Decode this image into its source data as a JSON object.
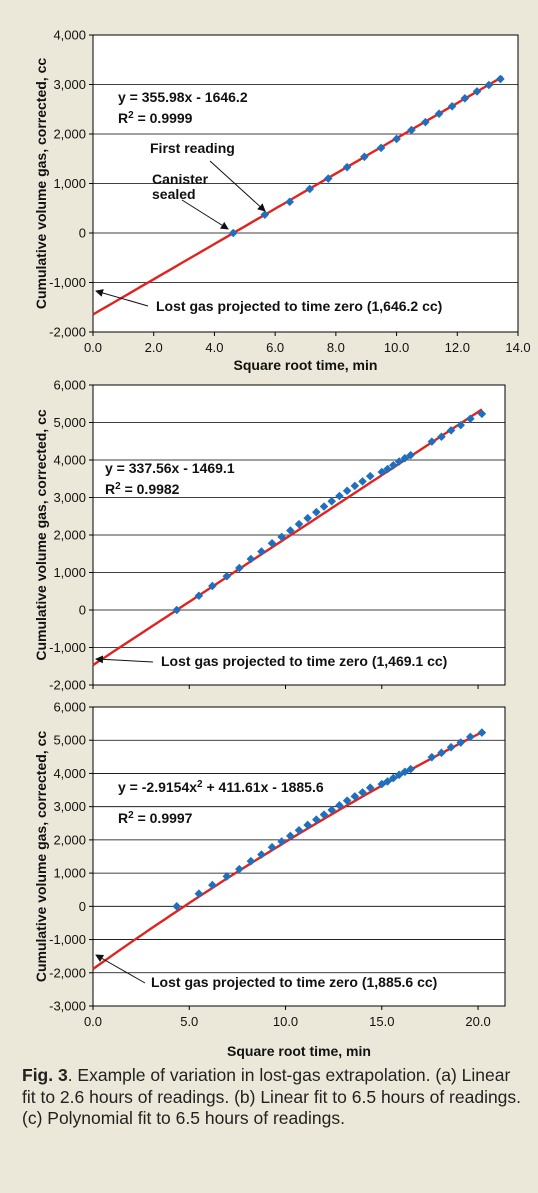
{
  "chart_data": [
    {
      "type": "scatter",
      "xlabel": "Square root time, min",
      "ylabel": "Cumulative volume gas, corrected, cc",
      "xlim": [
        0,
        14
      ],
      "ylim": [
        -2000,
        4000
      ],
      "xticks": [
        "0.0",
        "2.0",
        "4.0",
        "6.0",
        "8.0",
        "10.0",
        "12.0",
        "14.0"
      ],
      "yticks": [
        "-2,000",
        "-1,000",
        "0",
        "1,000",
        "2,000",
        "3,000",
        "4,000"
      ],
      "grid": "horizontal",
      "series": [
        {
          "x": [
            4.62,
            5.66,
            6.48,
            7.14,
            7.75,
            8.37,
            8.94,
            9.49,
            10.0,
            10.49,
            10.95,
            11.4,
            11.83,
            12.25,
            12.65,
            13.04,
            13.42
          ],
          "y": [
            0,
            370,
            630,
            890,
            1100,
            1330,
            1540,
            1720,
            1900,
            2080,
            2240,
            2410,
            2560,
            2720,
            2860,
            2990,
            3110
          ]
        }
      ],
      "fit": {
        "kind": "linear",
        "coefficients": [
          355.98,
          -1646.2
        ],
        "x_range": [
          0,
          13.5
        ]
      },
      "equation": "y = 355.98x - 1646.2",
      "r2": "R2 = 0.9999",
      "annotations": {
        "first_reading": "First reading",
        "canister_1": "Canister",
        "canister_2": "sealed",
        "lost_gas": "Lost gas projected to time zero (1,646.2 cc)"
      }
    },
    {
      "type": "scatter",
      "xlabel": "",
      "ylabel": "Cumulative volume gas, corrected, cc",
      "xlim": [
        0,
        21.4
      ],
      "ylim": [
        -2000,
        6000
      ],
      "xticks": [],
      "yticks": [
        "-2,000",
        "-1,000",
        "0",
        "1,000",
        "2,000",
        "3,000",
        "4,000",
        "5,000",
        "6,000"
      ],
      "grid": "horizontal",
      "series": [
        {
          "x": [
            4.35,
            5.5,
            6.2,
            6.95,
            7.6,
            8.2,
            8.75,
            9.3,
            9.8,
            10.25,
            10.7,
            11.15,
            11.6,
            12.0,
            12.4,
            12.8,
            13.2,
            13.6,
            14.0,
            14.4,
            15.0,
            15.3,
            15.6,
            15.9,
            16.2,
            16.5,
            17.6,
            18.1,
            18.6,
            19.1,
            19.6,
            20.2
          ],
          "y": [
            0,
            380,
            640,
            900,
            1120,
            1360,
            1560,
            1780,
            1950,
            2120,
            2290,
            2450,
            2610,
            2760,
            2900,
            3040,
            3180,
            3310,
            3430,
            3570,
            3680,
            3760,
            3860,
            3960,
            4050,
            4130,
            4490,
            4620,
            4790,
            4930,
            5100,
            5230
          ]
        }
      ],
      "fit": {
        "kind": "linear",
        "coefficients": [
          337.56,
          -1469.1
        ],
        "x_range": [
          0,
          20.2
        ]
      },
      "equation": "y = 337.56x - 1469.1",
      "r2": "R2 = 0.9982",
      "annotations": {
        "lost_gas": "Lost gas projected to time zero (1,469.1 cc)"
      }
    },
    {
      "type": "scatter",
      "xlabel": "Square root time, min",
      "ylabel": "Cumulative volume gas, corrected, cc",
      "xlim": [
        0,
        21.4
      ],
      "ylim": [
        -3000,
        6000
      ],
      "xticks": [
        "0.0",
        "5.0",
        "10.0",
        "15.0",
        "20.0"
      ],
      "yticks": [
        "-3,000",
        "-2,000",
        "-1,000",
        "0",
        "1,000",
        "2,000",
        "3,000",
        "4,000",
        "5,000",
        "6,000"
      ],
      "grid": "horizontal",
      "series": [
        {
          "x": [
            4.35,
            5.5,
            6.2,
            6.95,
            7.6,
            8.2,
            8.75,
            9.3,
            9.8,
            10.25,
            10.7,
            11.15,
            11.6,
            12.0,
            12.4,
            12.8,
            13.2,
            13.6,
            14.0,
            14.4,
            15.0,
            15.3,
            15.6,
            15.9,
            16.2,
            16.5,
            17.6,
            18.1,
            18.6,
            19.1,
            19.6,
            20.2
          ],
          "y": [
            0,
            380,
            640,
            900,
            1120,
            1360,
            1560,
            1780,
            1950,
            2120,
            2290,
            2450,
            2610,
            2760,
            2900,
            3040,
            3180,
            3310,
            3430,
            3570,
            3680,
            3760,
            3860,
            3960,
            4050,
            4130,
            4490,
            4620,
            4790,
            4930,
            5100,
            5230
          ]
        }
      ],
      "fit": {
        "kind": "quadratic",
        "coefficients": [
          -2.9154,
          411.61,
          -1885.6
        ],
        "x_range": [
          0,
          20.2
        ]
      },
      "equation": "y = -2.9154x2 + 411.61x - 1885.6",
      "r2": "R2 = 0.9997",
      "annotations": {
        "lost_gas": "Lost gas projected to time zero (1,885.6 cc)"
      }
    }
  ],
  "colors": {
    "background": "#ece8d9",
    "plot_background": "#ffffff",
    "marker": "#1f6fbf",
    "fit_line": "#e0231f",
    "grid": "#000000"
  },
  "caption": {
    "figure_label": "Fig. 3",
    "text": ". Example of variation in lost-gas extrapolation. (a) Linear fit to 2.6 hours of readings. (b) Linear fit to 6.5 hours of readings. (c) Polynomial fit to 6.5 hours of readings."
  }
}
